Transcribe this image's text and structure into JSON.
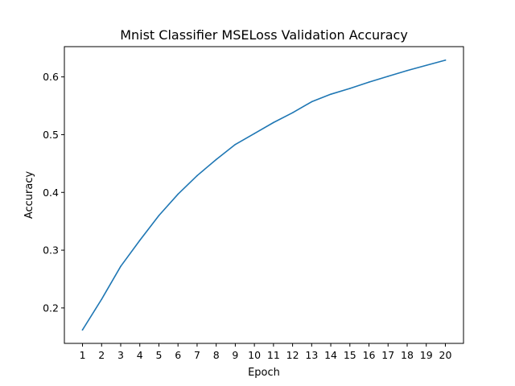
{
  "chart_data": {
    "type": "line",
    "title": "Mnist Classifier MSELoss Validation Accuracy",
    "xlabel": "Epoch",
    "ylabel": "Accuracy",
    "x": [
      1,
      2,
      3,
      4,
      5,
      6,
      7,
      8,
      9,
      10,
      11,
      12,
      13,
      14,
      15,
      16,
      17,
      18,
      19,
      20
    ],
    "series": [
      {
        "values": [
          0.162,
          0.215,
          0.272,
          0.317,
          0.36,
          0.397,
          0.429,
          0.457,
          0.483,
          0.502,
          0.521,
          0.538,
          0.557,
          0.57,
          0.58,
          0.591,
          0.601,
          0.611,
          0.62,
          0.629
        ],
        "color": "#1f77b4"
      }
    ],
    "xticks": [
      "1",
      "2",
      "3",
      "4",
      "5",
      "6",
      "7",
      "8",
      "9",
      "10",
      "11",
      "12",
      "13",
      "14",
      "15",
      "16",
      "17",
      "18",
      "19",
      "20"
    ],
    "yticks": [
      0.2,
      0.3,
      0.4,
      0.5,
      0.6
    ],
    "ytick_labels": [
      "0.2",
      "0.3",
      "0.4",
      "0.5",
      "0.6"
    ],
    "xlim": [
      0.05,
      20.95
    ],
    "ylim": [
      0.1386,
      0.6524
    ],
    "grid": false,
    "legend": false
  }
}
